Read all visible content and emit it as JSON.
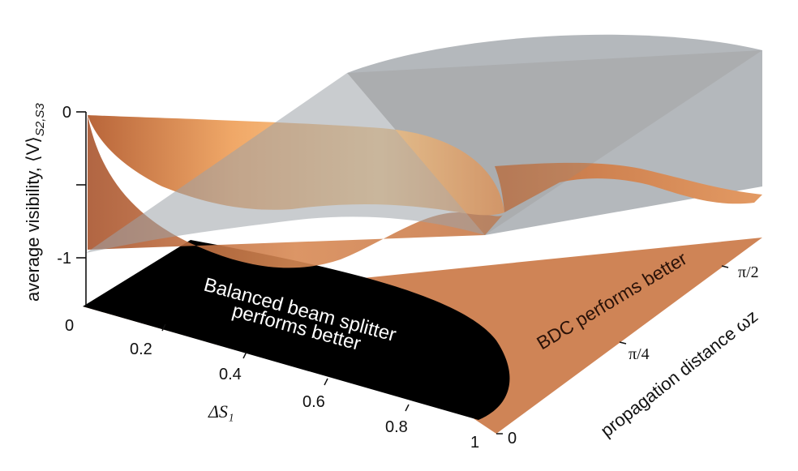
{
  "chart_data": {
    "type": "surface3d",
    "axes": {
      "x": {
        "label": "ΔS₁",
        "ticks": [
          "0",
          "0.2",
          "0.4",
          "0.6",
          "0.8",
          "1"
        ],
        "range": [
          0,
          1
        ]
      },
      "y": {
        "label": "propagation distance ωz",
        "ticks": [
          "0",
          "π/4",
          "π/2"
        ],
        "range": [
          0,
          1.5708
        ]
      },
      "z": {
        "label": "average visibility, ⟨V⟩",
        "label_subscript": "S2,S3",
        "ticks": [
          "0",
          "-1"
        ],
        "minor_tick_values": [
          -0.5
        ],
        "range": [
          -1,
          0
        ]
      }
    },
    "series": [
      {
        "name": "",
        "color": "#f2a561",
        "note_color_role": "orange surface"
      },
      {
        "name": "",
        "color": "#9aa0a6",
        "note_color_role": "translucent grey surface"
      }
    ],
    "regions": [
      {
        "label_lines": [
          "Balanced beam splitter",
          "performs better"
        ],
        "color": "#000000"
      },
      {
        "label": "BDC performs better",
        "color": "#cf8456"
      }
    ]
  }
}
